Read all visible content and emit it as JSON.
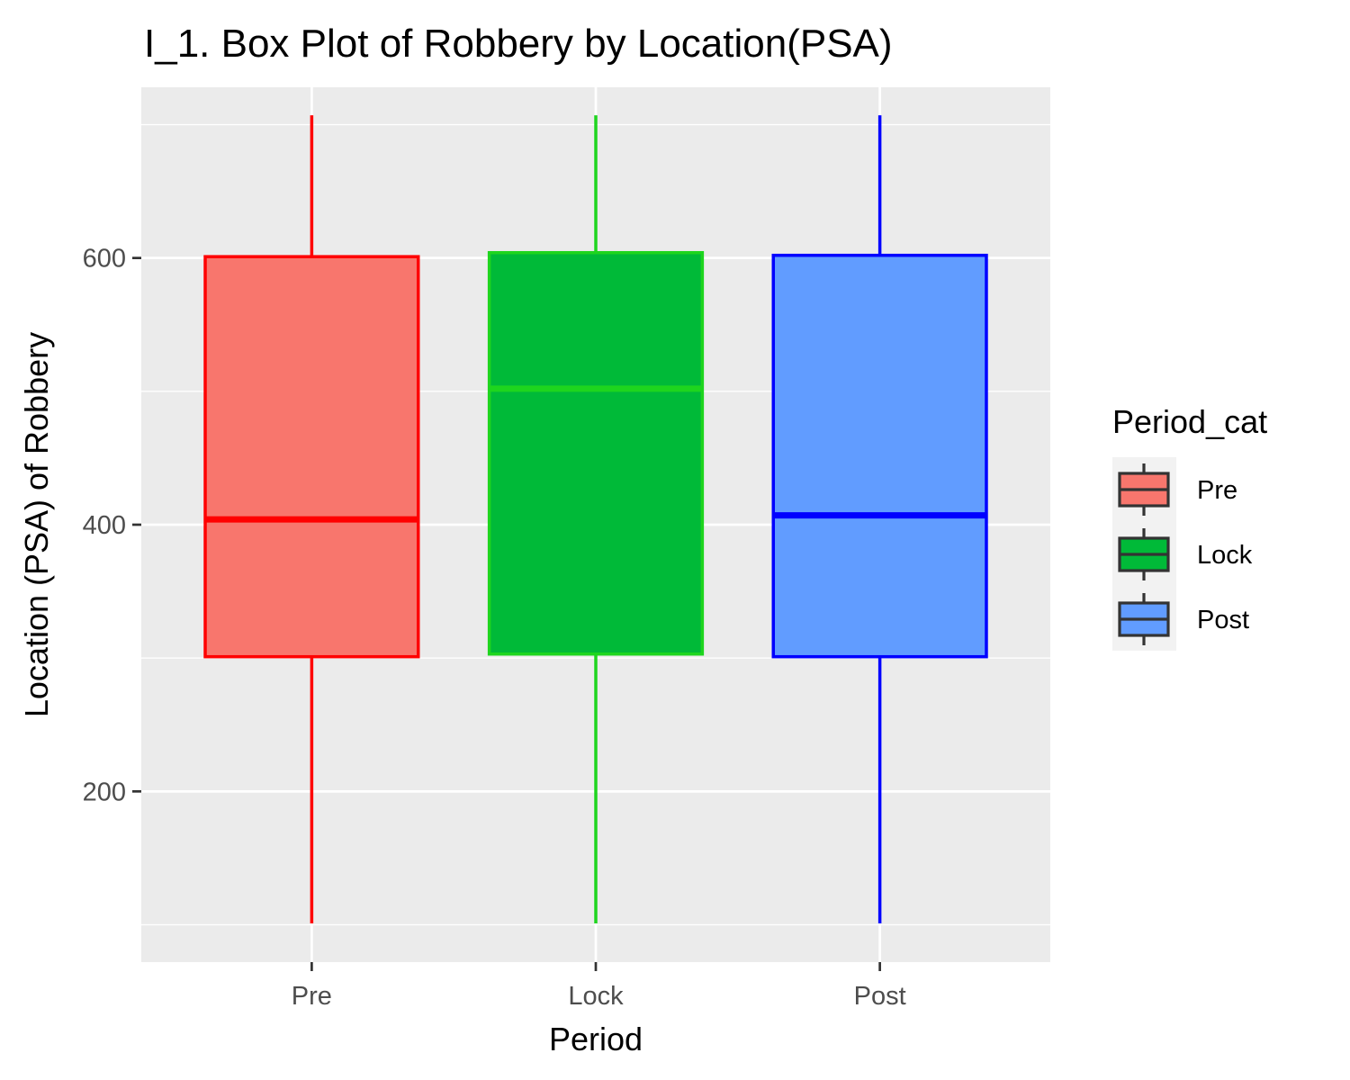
{
  "chart_data": {
    "type": "box",
    "title": "I_1. Box Plot of Robbery by Location(PSA)",
    "xlabel": "Period",
    "ylabel": "Location (PSA) of Robbery",
    "ylim": [
      72,
      728
    ],
    "yticks": [
      200,
      400,
      600
    ],
    "ytick_labels": [
      "200",
      "400",
      "600"
    ],
    "grid": true,
    "legend": {
      "title": "Period_cat",
      "placement": "right"
    },
    "categories": [
      "Pre",
      "Lock",
      "Post"
    ],
    "series": [
      {
        "name": "Pre",
        "min": 101,
        "q1": 301,
        "median": 404,
        "q3": 601,
        "max": 707,
        "fill": "#F8766D",
        "stroke": "#FF0000"
      },
      {
        "name": "Lock",
        "min": 101,
        "q1": 303,
        "median": 502,
        "q3": 604,
        "max": 707,
        "fill": "#00BA38",
        "stroke": "#1ED51E"
      },
      {
        "name": "Post",
        "min": 101,
        "q1": 301,
        "median": 407,
        "q3": 602,
        "max": 707,
        "fill": "#619CFF",
        "stroke": "#0000FF"
      }
    ]
  }
}
